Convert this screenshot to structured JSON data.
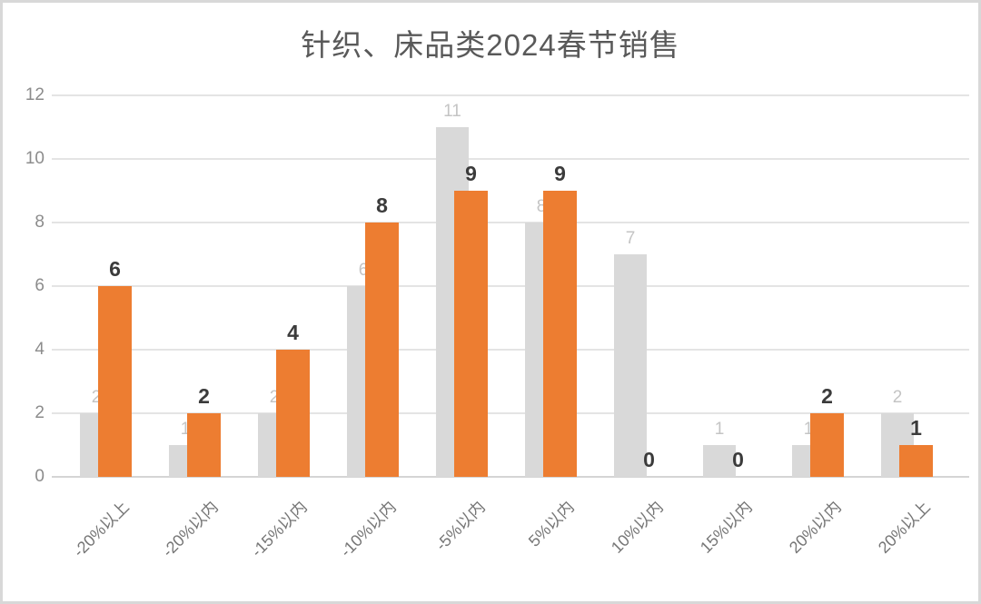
{
  "page": {
    "background": "#ffffff",
    "frame_border_color": "#d8d8d8"
  },
  "chart_data": {
    "type": "bar",
    "title": "针织、床品类2024春节销售",
    "title_color": "#595959",
    "categories": [
      "-20%以上",
      "-20%以内",
      "-15%以内",
      "-10%以内",
      "-5%以内",
      "5%以内",
      "10%以内",
      "15%以内",
      "20%以内",
      "20%以上"
    ],
    "series": [
      {
        "name": "gray-series",
        "color": "#D9D9D9",
        "label_color": "#C4C4C4",
        "values": [
          2,
          1,
          2,
          6,
          11,
          8,
          7,
          1,
          1,
          2
        ]
      },
      {
        "name": "orange-series",
        "color": "#ED7D31",
        "label_color": "#3B3B3B",
        "values": [
          6,
          2,
          4,
          8,
          9,
          9,
          0,
          0,
          2,
          1
        ]
      }
    ],
    "ylim": [
      0,
      12
    ],
    "yticks": [
      0,
      2,
      4,
      6,
      8,
      10,
      12
    ],
    "grid": true,
    "legend": "none",
    "axis_tick_color": "#8c8c8c",
    "gridline_color": "#e4e4e4"
  }
}
